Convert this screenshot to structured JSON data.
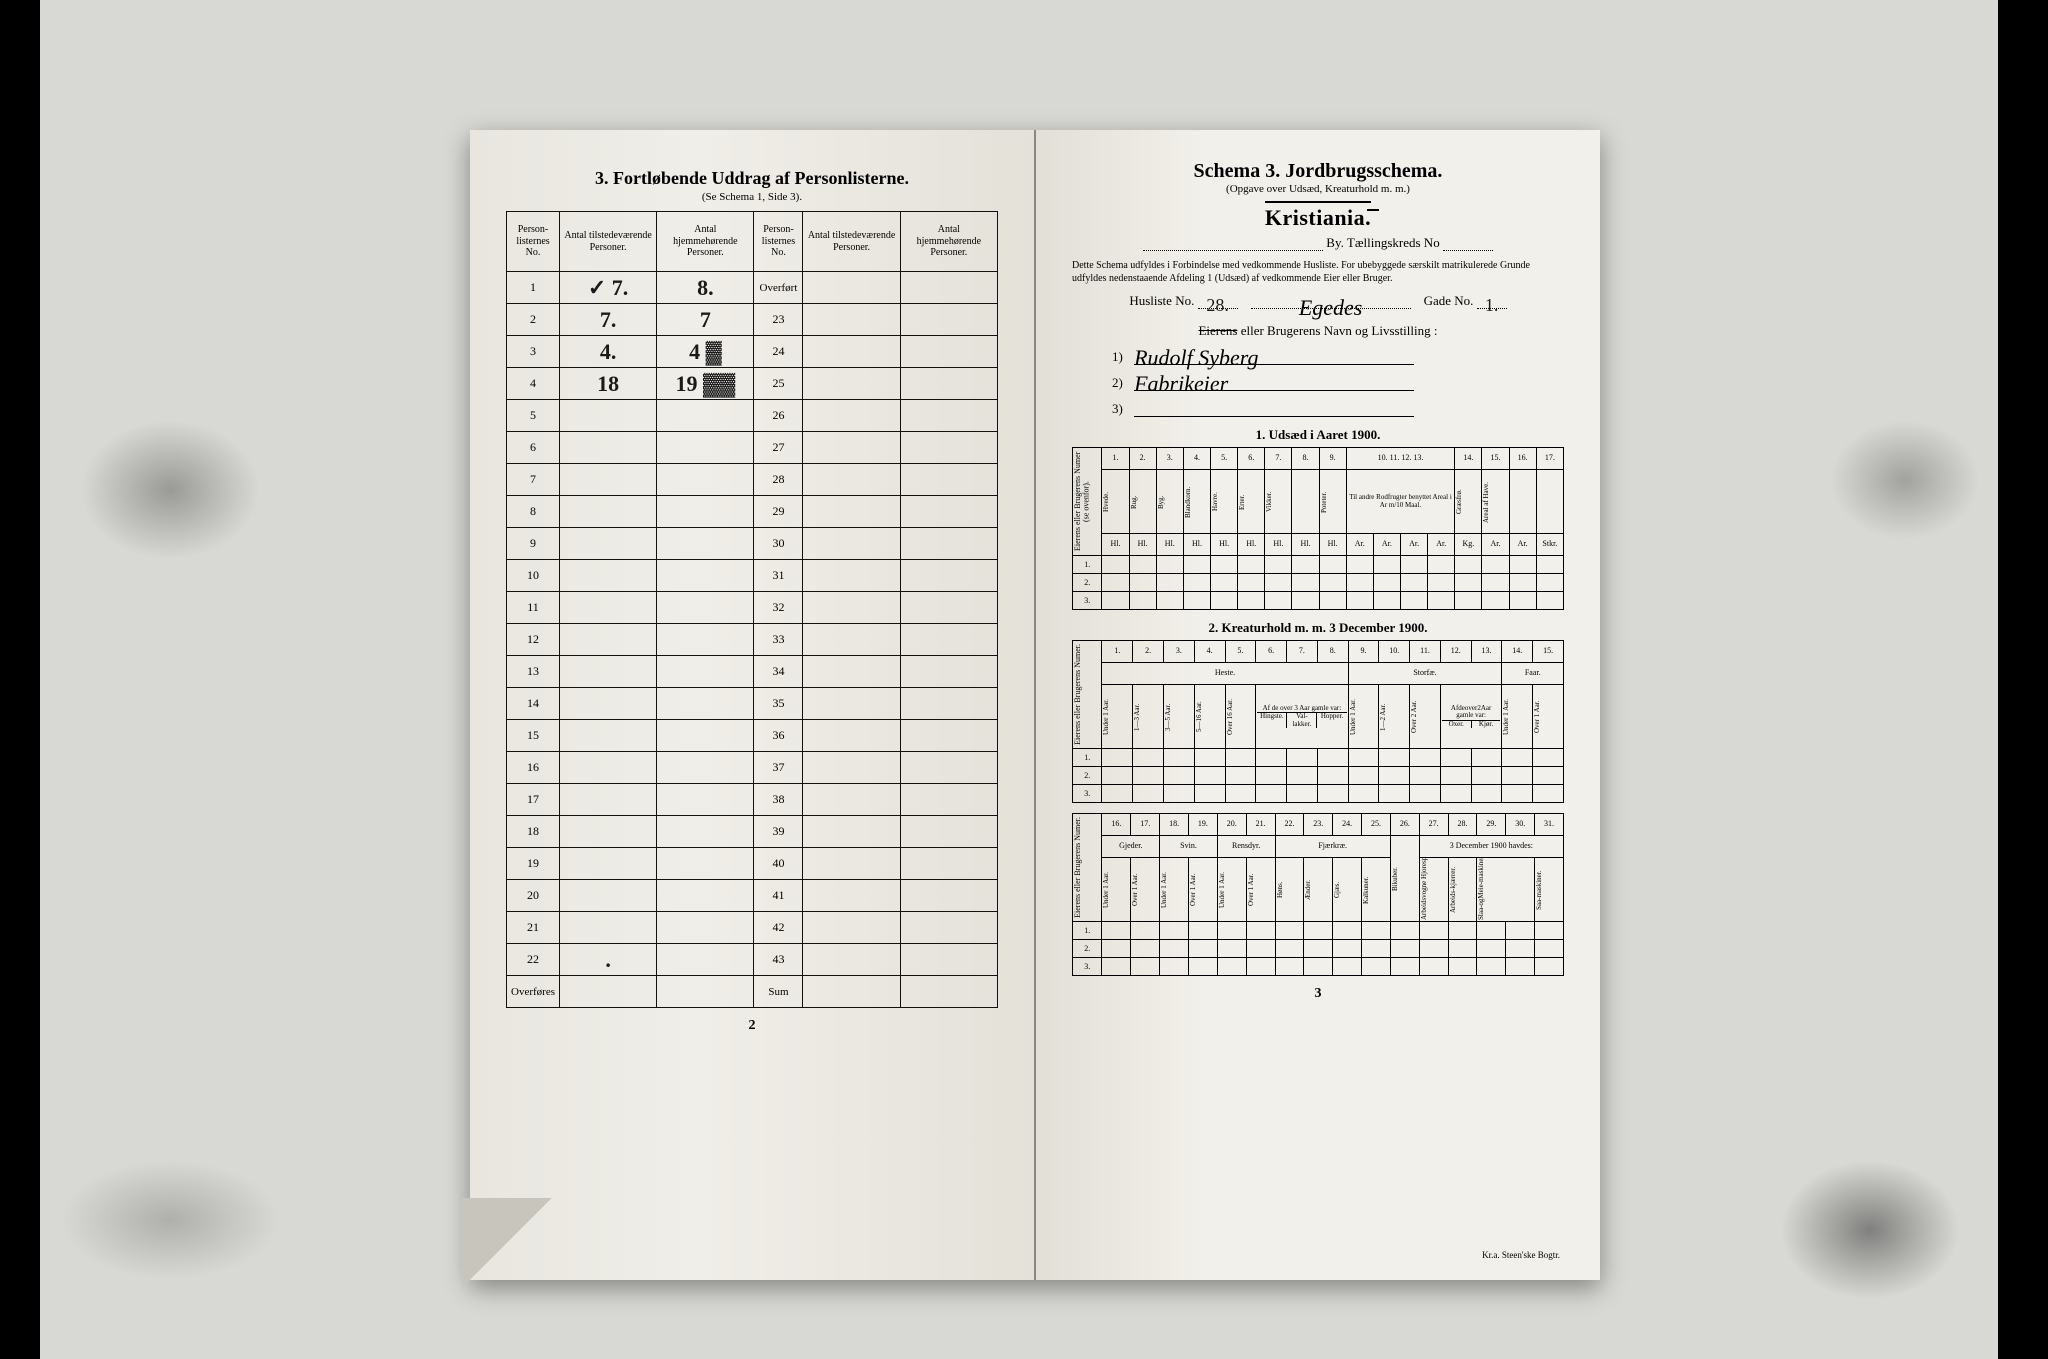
{
  "left": {
    "title": "3.  Fortløbende Uddrag af Personlisterne.",
    "subtitle": "(Se Schema 1, Side 3).",
    "headers": {
      "c1": "Person-listernes No.",
      "c2": "Antal tilstedeværende Personer.",
      "c3": "Antal hjemmehørende Personer.",
      "c4": "Person-listernes No.",
      "c5": "Antal tilstedeværende Personer.",
      "c6": "Antal hjemmehørende Personer."
    },
    "rows": [
      {
        "n": "1",
        "a": "✓ 7.",
        "b": "8.",
        "n2": "Overført",
        "a2": "",
        "b2": ""
      },
      {
        "n": "2",
        "a": "7.",
        "b": "7",
        "n2": "23",
        "a2": "",
        "b2": ""
      },
      {
        "n": "3",
        "a": "4.",
        "b": "4 ▓",
        "n2": "24",
        "a2": "",
        "b2": ""
      },
      {
        "n": "4",
        "a": "18",
        "b": "19  ▓▓",
        "n2": "25",
        "a2": "",
        "b2": ""
      },
      {
        "n": "5",
        "a": "",
        "b": "",
        "n2": "26",
        "a2": "",
        "b2": ""
      },
      {
        "n": "6",
        "a": "",
        "b": "",
        "n2": "27",
        "a2": "",
        "b2": ""
      },
      {
        "n": "7",
        "a": "",
        "b": "",
        "n2": "28",
        "a2": "",
        "b2": ""
      },
      {
        "n": "8",
        "a": "",
        "b": "",
        "n2": "29",
        "a2": "",
        "b2": ""
      },
      {
        "n": "9",
        "a": "",
        "b": "",
        "n2": "30",
        "a2": "",
        "b2": ""
      },
      {
        "n": "10",
        "a": "",
        "b": "",
        "n2": "31",
        "a2": "",
        "b2": ""
      },
      {
        "n": "11",
        "a": "",
        "b": "",
        "n2": "32",
        "a2": "",
        "b2": ""
      },
      {
        "n": "12",
        "a": "",
        "b": "",
        "n2": "33",
        "a2": "",
        "b2": ""
      },
      {
        "n": "13",
        "a": "",
        "b": "",
        "n2": "34",
        "a2": "",
        "b2": ""
      },
      {
        "n": "14",
        "a": "",
        "b": "",
        "n2": "35",
        "a2": "",
        "b2": ""
      },
      {
        "n": "15",
        "a": "",
        "b": "",
        "n2": "36",
        "a2": "",
        "b2": ""
      },
      {
        "n": "16",
        "a": "",
        "b": "",
        "n2": "37",
        "a2": "",
        "b2": ""
      },
      {
        "n": "17",
        "a": "",
        "b": "",
        "n2": "38",
        "a2": "",
        "b2": ""
      },
      {
        "n": "18",
        "a": "",
        "b": "",
        "n2": "39",
        "a2": "",
        "b2": ""
      },
      {
        "n": "19",
        "a": "",
        "b": "",
        "n2": "40",
        "a2": "",
        "b2": ""
      },
      {
        "n": "20",
        "a": "",
        "b": "",
        "n2": "41",
        "a2": "",
        "b2": ""
      },
      {
        "n": "21",
        "a": "",
        "b": "",
        "n2": "42",
        "a2": "",
        "b2": ""
      },
      {
        "n": "22",
        "a": ".",
        "b": "",
        "n2": "43",
        "a2": "",
        "b2": ""
      },
      {
        "n": "Overføres",
        "a": "",
        "b": "",
        "n2": "Sum",
        "a2": "",
        "b2": ""
      }
    ],
    "page_number": "2"
  },
  "right": {
    "schema_title": "Schema 3.   Jordbrugsschema.",
    "schema_sub": "(Opgave over Udsæd, Kreaturhold m. m.)",
    "city": "Kristiania.",
    "by_label": "By.   Tællingskreds No",
    "finetext": "Dette Schema udfyldes i Forbindelse med vedkommende Husliste. For ubebyggede særskilt matrikulerede Grunde udfyldes nedenstaaende Afdeling 1 (Udsæd) af vedkommende Eier eller Bruger.",
    "husliste_label": "Husliste No.",
    "husliste_no": "28.",
    "street": "Egedes",
    "gade_label": "Gade No.",
    "gade_no": "1.",
    "owner_heading_struck": "Eierens",
    "owner_heading_rest": "eller Brugerens Navn og Livsstilling :",
    "owner_1": "Rudolf Syberg",
    "owner_2": "Fabrikeier",
    "owner_3": "",
    "sect1_title": "1.  Udsæd i Aaret 1900.",
    "sect1_cols_top": [
      "1.",
      "2.",
      "3.",
      "4.",
      "5.",
      "6.",
      "7.",
      "8.",
      "9.",
      "10.",
      "11.",
      "12.",
      "13.",
      "14.",
      "15.",
      "16.",
      "17."
    ],
    "sect1_cols_mid": [
      "Hvede.",
      "Rug.",
      "Byg.",
      "Blandkorn.",
      "Havre.",
      "Erter.",
      "Vikker.",
      "",
      "Poteter.",
      "",
      "",
      "",
      "",
      "Græsfrø.",
      "Areal af Have.",
      "",
      ""
    ],
    "sect1_span_note": "Til andre Rodfrugter benyttet Areal i Ar m/10 Maal.",
    "sect1_units": [
      "Hl.",
      "Hl.",
      "Hl.",
      "Hl.",
      "Hl.",
      "Hl.",
      "Hl.",
      "Hl.",
      "Hl.",
      "Ar.",
      "Ar.",
      "Ar.",
      "Ar.",
      "Kg.",
      "Ar.",
      "Ar.",
      "Stkr."
    ],
    "sect1_rowh": "Eierens eller Brugerens Numer (se ovenfor).",
    "sect2_title": "2.  Kreaturhold m. m. 3 December 1900.",
    "sect2_cols_top": [
      "1.",
      "2.",
      "3.",
      "4.",
      "5.",
      "6.",
      "7.",
      "8.",
      "9.",
      "10.",
      "11.",
      "12.",
      "13.",
      "14.",
      "15."
    ],
    "sect2_group_heste": "Heste.",
    "sect2_group_storfae": "Storfæ.",
    "sect2_group_faar": "Faar.",
    "sect2_heste": [
      "Under 1 Aar.",
      "1—3 Aar.",
      "3—5 Aar.",
      "5—16 Aar.",
      "Over 16 Aar."
    ],
    "sect2_afde": "Af de over 3 Aar gamle var:",
    "sect2_afde2": "Afdeover2Aar gamle var:",
    "sect2_heste_sub": [
      "Hingste.",
      "Val-lakker.",
      "Hopper."
    ],
    "sect2_storfae": [
      "Under 1 Aar.",
      "1—2 Aar.",
      "Over 2 Aar.",
      "Oxer.",
      "Kjør."
    ],
    "sect2_faar": [
      "Under 1 Aar.",
      "Over 1 Aar."
    ],
    "sect3_cols_top": [
      "16.",
      "17.",
      "18.",
      "19.",
      "20.",
      "21.",
      "22.",
      "23.",
      "24.",
      "25.",
      "26.",
      "27.",
      "28.",
      "29.",
      "30.",
      "31."
    ],
    "sect3_group_gjeder": "Gjeder.",
    "sect3_group_svin": "Svin.",
    "sect3_group_rensdyr": "Rensdyr.",
    "sect3_group_fjaerkrae": "Fjærkræ.",
    "sect3_havdes": "3 December 1900 havdes:",
    "sect3_gjeder": [
      "Under 1 Aar.",
      "Over 1 Aar."
    ],
    "sect3_svin": [
      "Under 1 Aar.",
      "Over 1 Aar."
    ],
    "sect3_rensdyr": [
      "Under 1 Aar.",
      "Over 1 Aar."
    ],
    "sect3_fjaerkrae": [
      "Høns.",
      "Ænder.",
      "Gjæs.",
      "Kalkuner."
    ],
    "sect3_havdes_cols": [
      "Bikuber.",
      "Arbeidsvogne Hjorespe ikke medregnet.",
      "Arbeids-kjærrer.",
      "Slaa-ogMeie-maskiner.",
      "Saa-maskiner."
    ],
    "sect2_rowh": "Eierens eller Brugerens Numer.",
    "row_nums": [
      "1.",
      "2.",
      "3."
    ],
    "page_number": "3",
    "imprint": "Kr.a.  Steen'ske Bogtr."
  }
}
